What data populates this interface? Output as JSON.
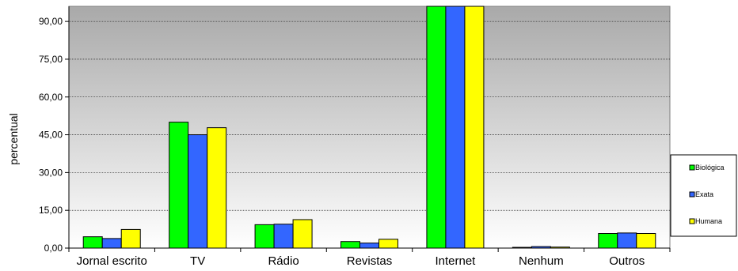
{
  "chart_data": {
    "type": "bar",
    "title": "",
    "xlabel": "",
    "ylabel": "percentual",
    "ylim": [
      0,
      96
    ],
    "yticks": [
      0,
      15,
      30,
      45,
      60,
      75,
      90
    ],
    "ytick_labels": [
      "0,00",
      "15,00",
      "30,00",
      "45,00",
      "60,00",
      "75,00",
      "90,00"
    ],
    "categories": [
      "Jornal escrito",
      "TV",
      "Rádio",
      "Revistas",
      "Internet",
      "Nenhum",
      "Outros"
    ],
    "series": [
      {
        "name": "Biológica",
        "color": "#00ff00",
        "values": [
          4.5,
          50.0,
          9.3,
          2.6,
          96.0,
          0.3,
          5.8
        ]
      },
      {
        "name": "Exata",
        "color": "#3366ff",
        "values": [
          3.8,
          45.0,
          9.5,
          2.0,
          96.0,
          0.6,
          6.0
        ]
      },
      {
        "name": "Humana",
        "color": "#ffff00",
        "values": [
          7.4,
          47.8,
          11.3,
          3.5,
          96.0,
          0.4,
          5.8
        ]
      }
    ],
    "grid": true,
    "legend_position": "right",
    "background": "gray-gradient"
  }
}
